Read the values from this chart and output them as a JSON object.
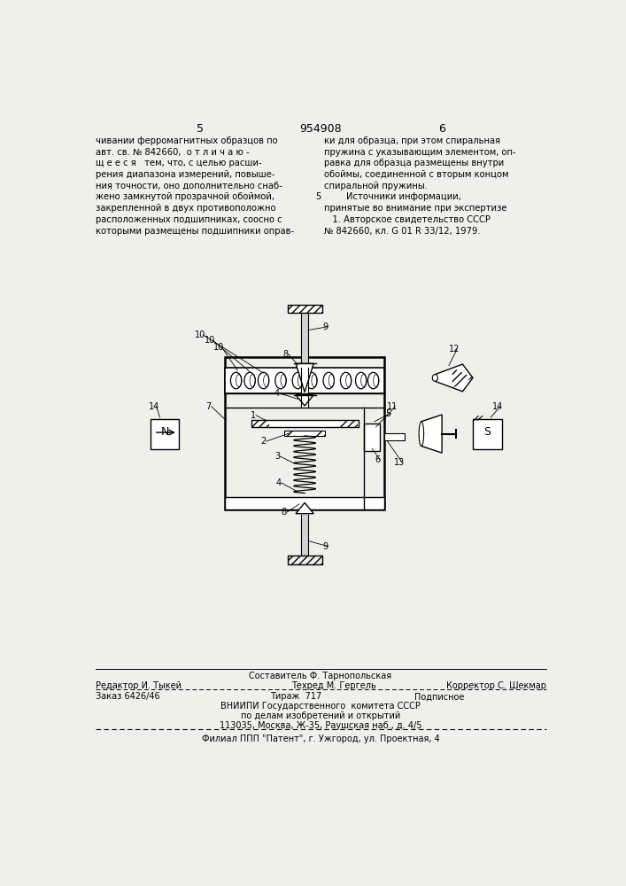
{
  "bg_color": "#f0f0eb",
  "page_number_left": "5",
  "page_number_center": "954908",
  "page_number_right": "6",
  "text_left": "чивании ферромагнитных образцов по\nавт. св. № 842660,  о т л и ч а ю -\nщ е е с я   тем, что, с целью расши-\nрения диапазона измерений, повыше-\nния точности, оно дополнительно снаб-\nжено замкнутой прозрачной обоймой,\nзакрепленной в двух противоположно\nрасположенных подшипниках, соосно с\nкоторыми размещены подшипники оправ-",
  "text_right": "ки для образца, при этом спиральная\nпружина с указывающим элементом, оп-\nравка для образца размещены внутри\nобоймы, соединенной с вторым концом\nспиральной пружины.\n        Источники информации,\nпринятые во внимание при экспертизе\n   1. Авторское свидетельство СССР\n№ 842660, кл. G 01 R 33/12, 1979.",
  "col_sep_num": "5",
  "footer_editor": "Редактор И. Тыкей",
  "footer_comp": "Составитель Ф. Тарнопольская",
  "footer_tech": "Техред М. Гергель",
  "footer_corr": "Корректор С. Шекмар",
  "footer_order": "Заказ 6426/46",
  "footer_circ": "Тираж  717",
  "footer_sub": "Подписное",
  "footer_org1": "ВНИИПИ Государственного  комитета СССР",
  "footer_org2": "по делам изобретений и открытий",
  "footer_addr": "113035, Москва, Ж-35, Раушская наб., д. 4/5",
  "footer_branch": "Филиал ППП \"Патент\", г. Ужгород, ул. Проектная, 4"
}
